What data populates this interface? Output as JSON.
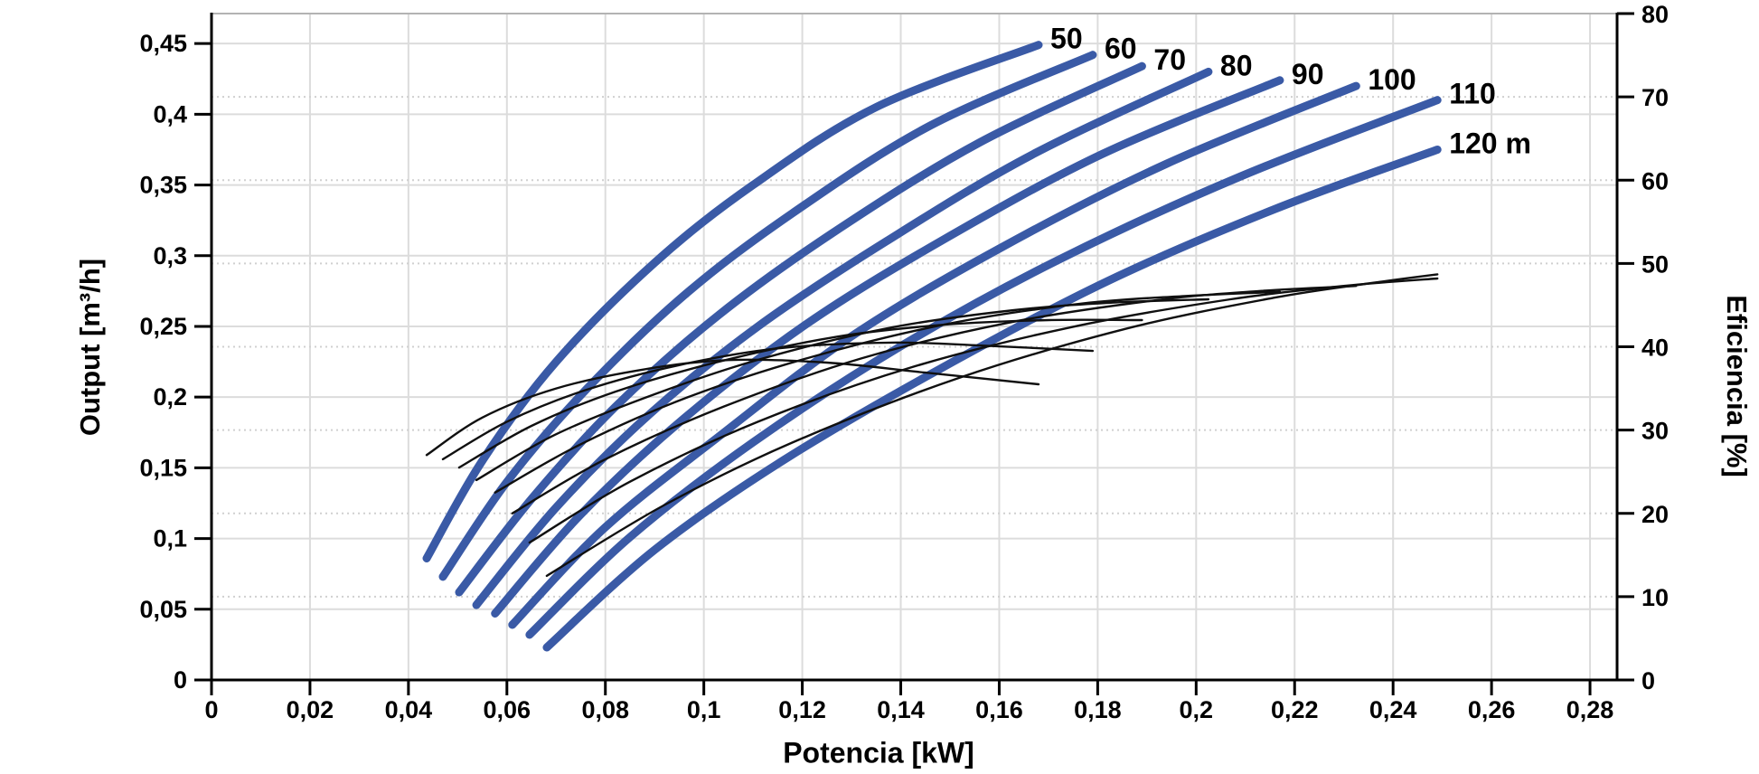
{
  "page": {
    "background": "#ffffff"
  },
  "chart_data": {
    "type": "line",
    "title": "",
    "xlabel": "Potencia [kW]",
    "ylabel_left": "Output [m³/h]",
    "ylabel_right": "Eficiencia [%]",
    "xlim": [
      0,
      0.2855
    ],
    "ylim_left": [
      0,
      0.4712
    ],
    "ylim_right": [
      0,
      80
    ],
    "x_ticks": [
      0,
      0.02,
      0.04,
      0.06,
      0.08,
      0.1,
      0.12,
      0.14,
      0.16,
      0.18,
      0.2,
      0.22,
      0.24,
      0.26,
      0.28
    ],
    "x_tick_labels": [
      "0",
      "0,02",
      "0,04",
      "0,06",
      "0,08",
      "0,1",
      "0,12",
      "0,14",
      "0,16",
      "0,18",
      "0,2",
      "0,22",
      "0,24",
      "0,26",
      "0,28"
    ],
    "y_ticks_left": [
      0,
      0.05,
      0.1,
      0.15,
      0.2,
      0.25,
      0.3,
      0.35,
      0.4,
      0.45
    ],
    "y_tick_labels_left": [
      "0",
      "0,05",
      "0,1",
      "0,15",
      "0,2",
      "0,25",
      "0,3",
      "0,35",
      "0,4",
      "0,45"
    ],
    "y_ticks_right": [
      0,
      10,
      20,
      30,
      40,
      50,
      60,
      70,
      80
    ],
    "y_tick_labels_right": [
      "0",
      "10",
      "20",
      "30",
      "40",
      "50",
      "60",
      "70",
      "80"
    ],
    "grid": {
      "vertical": "solid at every x tick",
      "horizontal_left_axis": "solid",
      "horizontal_right_axis": "dotted",
      "on": true
    },
    "legend": "none — blue flow curves labeled inline with head in meters; thin black curves are efficiency",
    "flow_curves": [
      {
        "head_m": 50,
        "label": "50",
        "P_kW": [
          0.0437,
          0.055,
          0.07,
          0.09,
          0.11,
          0.135,
          0.168
        ],
        "Q_m3h": [
          0.086,
          0.155,
          0.225,
          0.295,
          0.35,
          0.405,
          0.449
        ]
      },
      {
        "head_m": 60,
        "label": "60",
        "P_kW": [
          0.047,
          0.06,
          0.076,
          0.096,
          0.118,
          0.146,
          0.179
        ],
        "Q_m3h": [
          0.073,
          0.14,
          0.205,
          0.272,
          0.33,
          0.392,
          0.442
        ]
      },
      {
        "head_m": 70,
        "label": "70",
        "P_kW": [
          0.0503,
          0.065,
          0.082,
          0.103,
          0.127,
          0.156,
          0.189
        ],
        "Q_m3h": [
          0.062,
          0.128,
          0.193,
          0.258,
          0.318,
          0.38,
          0.434
        ]
      },
      {
        "head_m": 80,
        "label": "80",
        "P_kW": [
          0.0538,
          0.07,
          0.089,
          0.111,
          0.137,
          0.167,
          0.2025
        ],
        "Q_m3h": [
          0.053,
          0.122,
          0.188,
          0.25,
          0.31,
          0.372,
          0.43
        ]
      },
      {
        "head_m": 90,
        "label": "90",
        "P_kW": [
          0.0576,
          0.075,
          0.096,
          0.121,
          0.149,
          0.181,
          0.217
        ],
        "Q_m3h": [
          0.047,
          0.117,
          0.185,
          0.252,
          0.312,
          0.372,
          0.424
        ]
      },
      {
        "head_m": 100,
        "label": "100",
        "P_kW": [
          0.0611,
          0.08,
          0.103,
          0.13,
          0.16,
          0.194,
          0.2325
        ],
        "Q_m3h": [
          0.039,
          0.108,
          0.172,
          0.243,
          0.305,
          0.365,
          0.42
        ]
      },
      {
        "head_m": 110,
        "label": "110",
        "P_kW": [
          0.0646,
          0.085,
          0.11,
          0.14,
          0.172,
          0.209,
          0.249
        ],
        "Q_m3h": [
          0.032,
          0.101,
          0.168,
          0.236,
          0.297,
          0.356,
          0.41
        ]
      },
      {
        "head_m": 120,
        "label": "120 m",
        "P_kW": [
          0.0681,
          0.09,
          0.116,
          0.148,
          0.182,
          0.216,
          0.249
        ],
        "Q_m3h": [
          0.023,
          0.092,
          0.155,
          0.22,
          0.282,
          0.333,
          0.375
        ]
      }
    ],
    "efficiency_curves": [
      {
        "head_m": 50,
        "P_kW": [
          0.0437,
          0.055,
          0.07,
          0.088,
          0.105,
          0.125,
          0.145,
          0.168
        ],
        "eff_pct": [
          27.0,
          31.5,
          35.0,
          37.3,
          38.4,
          38.1,
          36.9,
          35.5
        ]
      },
      {
        "head_m": 60,
        "P_kW": [
          0.047,
          0.06,
          0.076,
          0.095,
          0.115,
          0.138,
          0.158,
          0.179
        ],
        "eff_pct": [
          26.5,
          31.0,
          34.8,
          37.8,
          39.8,
          40.5,
          40.1,
          39.5
        ]
      },
      {
        "head_m": 70,
        "P_kW": [
          0.0503,
          0.065,
          0.082,
          0.103,
          0.127,
          0.15,
          0.17,
          0.189
        ],
        "eff_pct": [
          25.5,
          30.5,
          34.6,
          38.2,
          41.2,
          42.7,
          43.2,
          43.2
        ]
      },
      {
        "head_m": 80,
        "P_kW": [
          0.0538,
          0.07,
          0.09,
          0.112,
          0.138,
          0.163,
          0.183,
          0.2025
        ],
        "eff_pct": [
          24.0,
          29.5,
          34.3,
          38.6,
          42.3,
          44.4,
          45.3,
          45.7
        ]
      },
      {
        "head_m": 90,
        "P_kW": [
          0.0576,
          0.075,
          0.097,
          0.122,
          0.15,
          0.177,
          0.198,
          0.217
        ],
        "eff_pct": [
          22.5,
          28.3,
          34.0,
          38.8,
          42.8,
          45.2,
          46.1,
          46.6
        ]
      },
      {
        "head_m": 100,
        "P_kW": [
          0.0611,
          0.08,
          0.104,
          0.132,
          0.162,
          0.192,
          0.213,
          0.2325
        ],
        "eff_pct": [
          20.0,
          26.5,
          32.8,
          38.6,
          42.9,
          45.6,
          46.7,
          47.3
        ]
      },
      {
        "head_m": 110,
        "P_kW": [
          0.0646,
          0.085,
          0.111,
          0.142,
          0.175,
          0.207,
          0.23,
          0.249
        ],
        "eff_pct": [
          16.5,
          23.8,
          31.0,
          37.5,
          42.4,
          45.7,
          47.3,
          48.2
        ]
      },
      {
        "head_m": 120,
        "P_kW": [
          0.0681,
          0.092,
          0.118,
          0.152,
          0.186,
          0.216,
          0.235,
          0.249
        ],
        "eff_pct": [
          12.5,
          21.0,
          28.5,
          36.3,
          42.2,
          45.9,
          47.6,
          48.7
        ]
      }
    ],
    "colors": {
      "flow": "#3a5aa6",
      "efficiency": "#101010",
      "grid": "#dcdcdc",
      "grid_dotted": "#d0d0d0",
      "top_border": "#b3b3b3",
      "axis": "#000000",
      "text": "#000000"
    }
  }
}
